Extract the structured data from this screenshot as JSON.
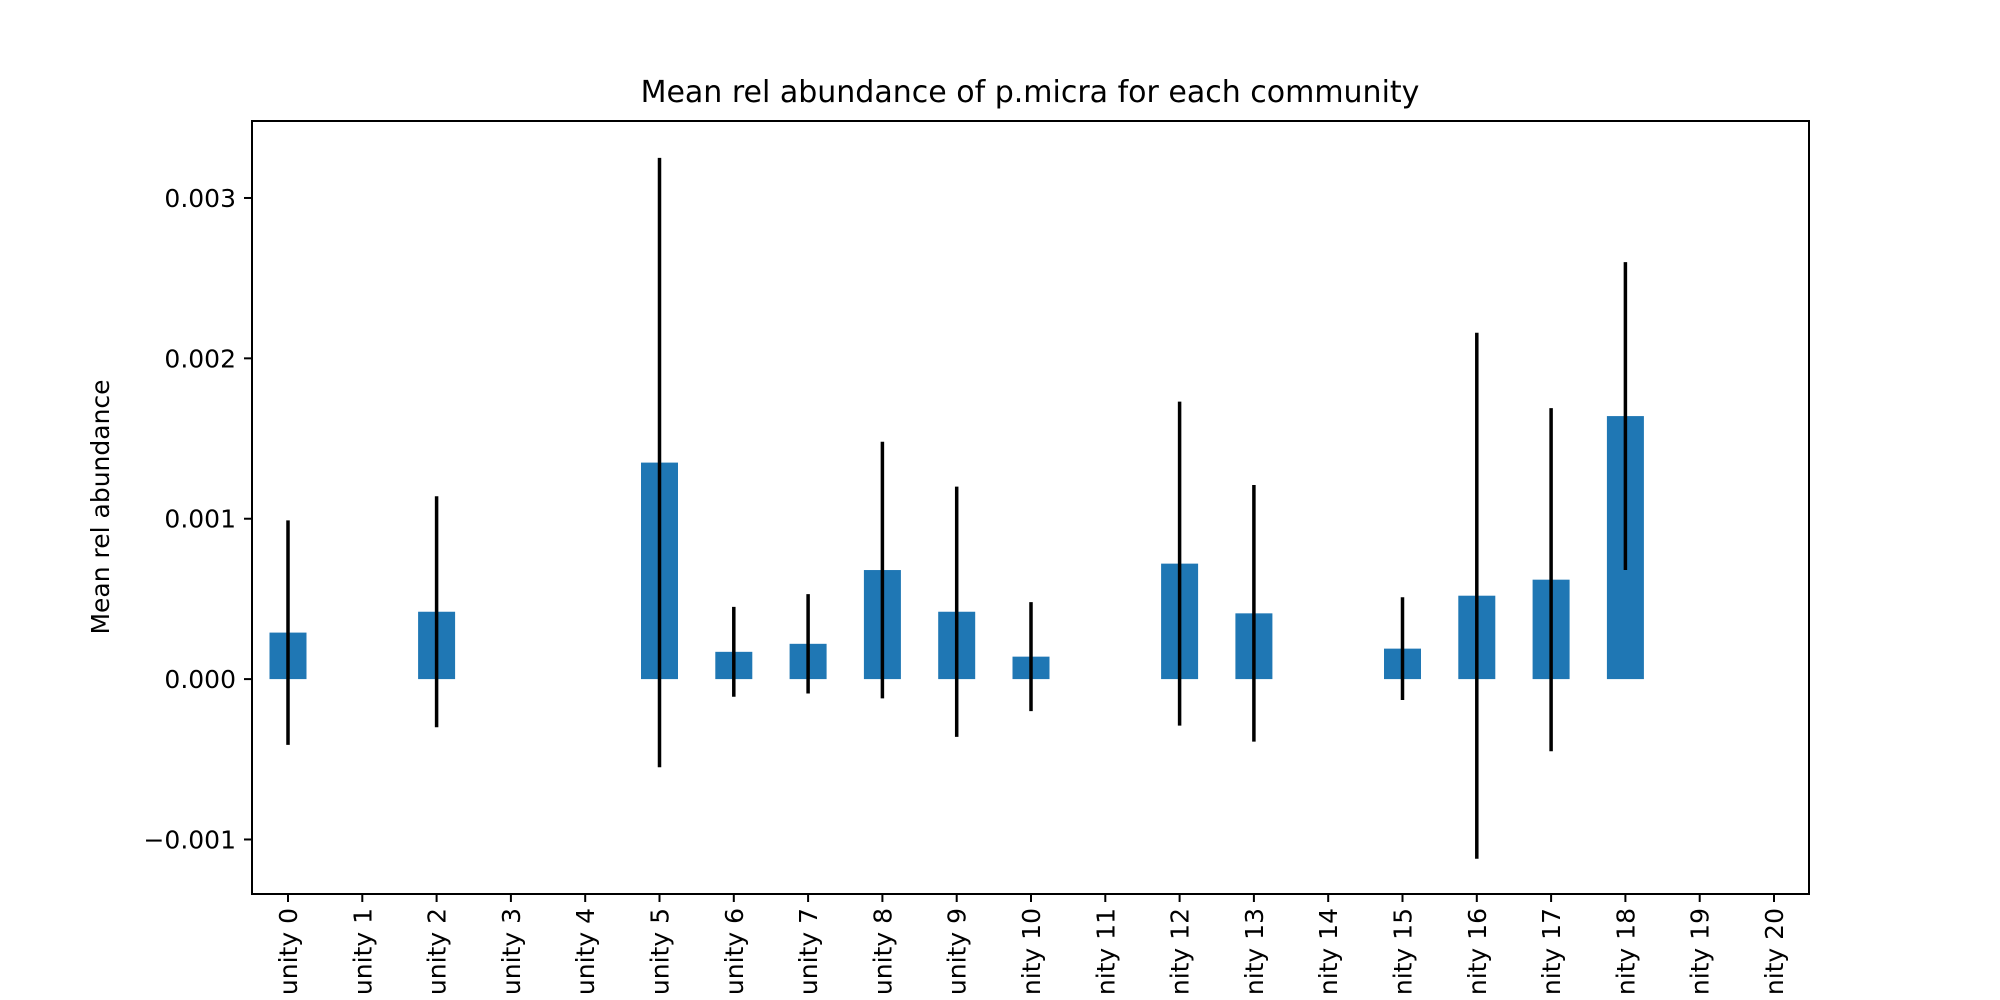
{
  "chart_data": {
    "type": "bar",
    "title": "Mean rel abundance of p.micra for each community",
    "xlabel": "",
    "ylabel": "Mean rel abundance",
    "ylim": [
      -0.00134,
      0.00348
    ],
    "yticks": [
      -0.001,
      0.0,
      0.001,
      0.002,
      0.003
    ],
    "ytick_labels": [
      "−0.001",
      "0.000",
      "0.001",
      "0.002",
      "0.003"
    ],
    "grid": false,
    "legend": "none",
    "bar_color": "#1f77b4",
    "errorbar_color": "#000000",
    "categories": [
      "unity 0",
      "unity 1",
      "unity 2",
      "unity 3",
      "unity 4",
      "unity 5",
      "unity 6",
      "unity 7",
      "unity 8",
      "unity 9",
      "nity 10",
      "nity 11",
      "nity 12",
      "nity 13",
      "nity 14",
      "nity 15",
      "nity 16",
      "nity 17",
      "nity 18",
      "nity 19",
      "nity 20"
    ],
    "values": [
      0.00029,
      0.0,
      0.00042,
      0.0,
      0.0,
      0.00135,
      0.00017,
      0.00022,
      0.00068,
      0.00042,
      0.00014,
      0.0,
      0.00072,
      0.00041,
      0.0,
      0.00019,
      0.00052,
      0.00062,
      0.00164,
      0.0,
      0.0
    ],
    "errors": [
      0.0007,
      0.0,
      0.00072,
      0.0,
      0.0,
      0.0019,
      0.00028,
      0.00031,
      0.0008,
      0.00078,
      0.00034,
      0.0,
      0.00101,
      0.0008,
      0.0,
      0.00032,
      0.00164,
      0.00107,
      0.00096,
      0.0,
      0.0
    ]
  }
}
